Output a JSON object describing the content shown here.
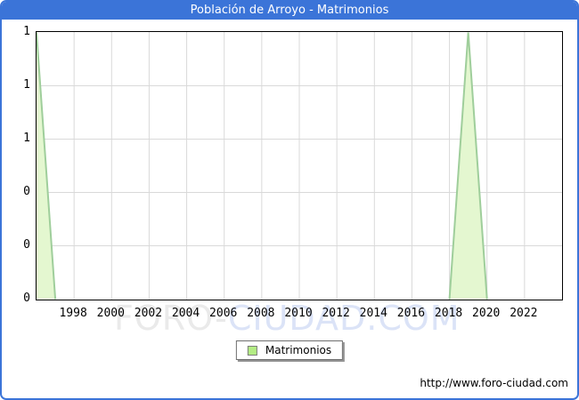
{
  "title": "Población de Arroyo - Matrimonios",
  "colors": {
    "accent_blue": "#3b74d8",
    "fill_green": "#e4f7d0",
    "line_green": "#9fce9b",
    "grid_gray": "#d9d9d9",
    "watermark_gray": "#eaeaea",
    "watermark_blue": "#dbe3f7"
  },
  "watermark": {
    "part1": "FORO",
    "sep": "-",
    "part2": "CIUDAD.COM"
  },
  "legend": {
    "label": "Matrimonios",
    "swatch_fill": "#b3ec84",
    "swatch_border": "#7d7d7d"
  },
  "footer_url": "http://www.foro-ciudad.com",
  "chart_data": {
    "type": "area",
    "title": "Población de Arroyo - Matrimonios",
    "xlabel": "",
    "ylabel": "",
    "xlim": [
      1996,
      2024
    ],
    "ylim": [
      0,
      1
    ],
    "grid": true,
    "legend_position": "bottom",
    "x": [
      1996,
      1997,
      1998,
      1999,
      2000,
      2001,
      2002,
      2003,
      2004,
      2005,
      2006,
      2007,
      2008,
      2009,
      2010,
      2011,
      2012,
      2013,
      2014,
      2015,
      2016,
      2017,
      2018,
      2019,
      2020,
      2021,
      2022,
      2023,
      2024
    ],
    "series": [
      {
        "name": "Matrimonios",
        "values": [
          1,
          0,
          0,
          0,
          0,
          0,
          0,
          0,
          0,
          0,
          0,
          0,
          0,
          0,
          0,
          0,
          0,
          0,
          0,
          0,
          0,
          0,
          0,
          1,
          0,
          0,
          0,
          0,
          0
        ]
      }
    ],
    "x_tick_years": [
      1998,
      2000,
      2002,
      2004,
      2006,
      2008,
      2010,
      2012,
      2014,
      2016,
      2018,
      2020,
      2022
    ],
    "y_tick_values": [
      0,
      0.2,
      0.4,
      0.6,
      0.8,
      1
    ],
    "y_tick_labels": [
      "0",
      "0",
      "0",
      "1",
      "1",
      "1"
    ]
  }
}
